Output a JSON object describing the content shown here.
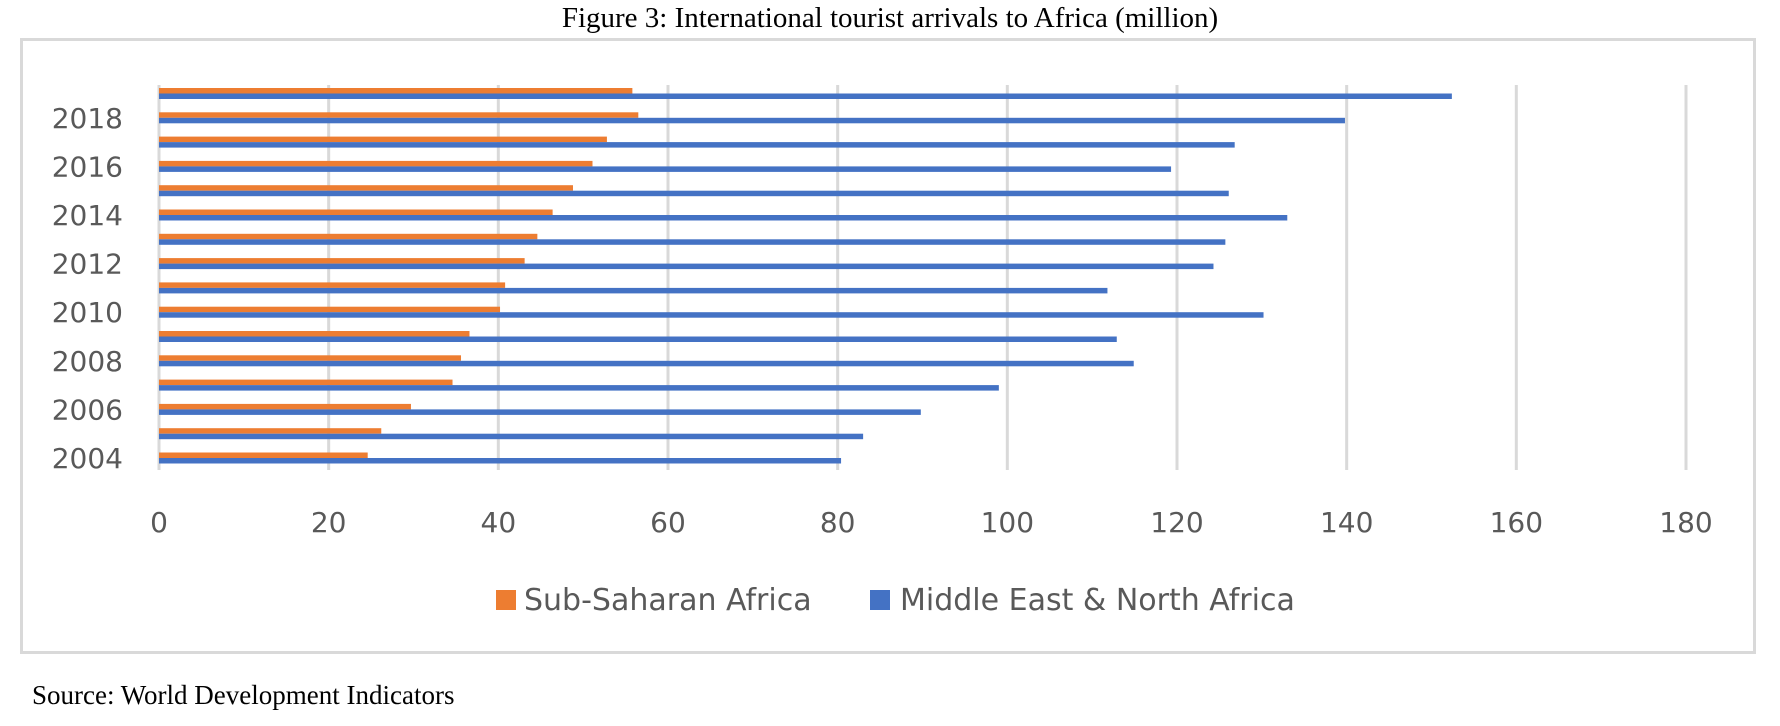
{
  "figure_title": "Figure 3:  International tourist arrivals to Africa (million)",
  "source_note": "Source: World Development Indicators",
  "colors": {
    "sub_saharan": "#ed7d31",
    "mena": "#4472c4",
    "grid": "#d9d9d9",
    "frame": "#d9d9d9",
    "text": "#595959"
  },
  "chart_data": {
    "type": "bar",
    "orientation": "horizontal",
    "title": "",
    "xlabel": "",
    "ylabel": "",
    "xlim": [
      0,
      180
    ],
    "x_ticks": [
      0,
      20,
      40,
      60,
      80,
      100,
      120,
      140,
      160,
      180
    ],
    "categories": [
      2004,
      2005,
      2006,
      2007,
      2008,
      2009,
      2010,
      2011,
      2012,
      2013,
      2014,
      2015,
      2016,
      2017,
      2018,
      2019
    ],
    "category_tick_labels": [
      "2004",
      "",
      "2006",
      "",
      "2008",
      "",
      "2010",
      "",
      "2012",
      "",
      "2014",
      "",
      "2016",
      "",
      "2018",
      ""
    ],
    "grid": "vertical",
    "legend_position": "bottom",
    "series": [
      {
        "name": "Sub-Saharan Africa",
        "values": [
          24.6,
          26.2,
          29.7,
          34.6,
          35.6,
          36.6,
          40.2,
          40.8,
          43.1,
          44.6,
          46.4,
          48.8,
          51.1,
          52.8,
          56.5,
          55.8
        ]
      },
      {
        "name": "Middle East & North Africa",
        "values": [
          80.4,
          83.0,
          89.8,
          99.0,
          114.9,
          112.9,
          130.2,
          111.8,
          124.3,
          125.7,
          133.0,
          126.1,
          119.3,
          126.8,
          139.8,
          152.4
        ]
      }
    ]
  }
}
